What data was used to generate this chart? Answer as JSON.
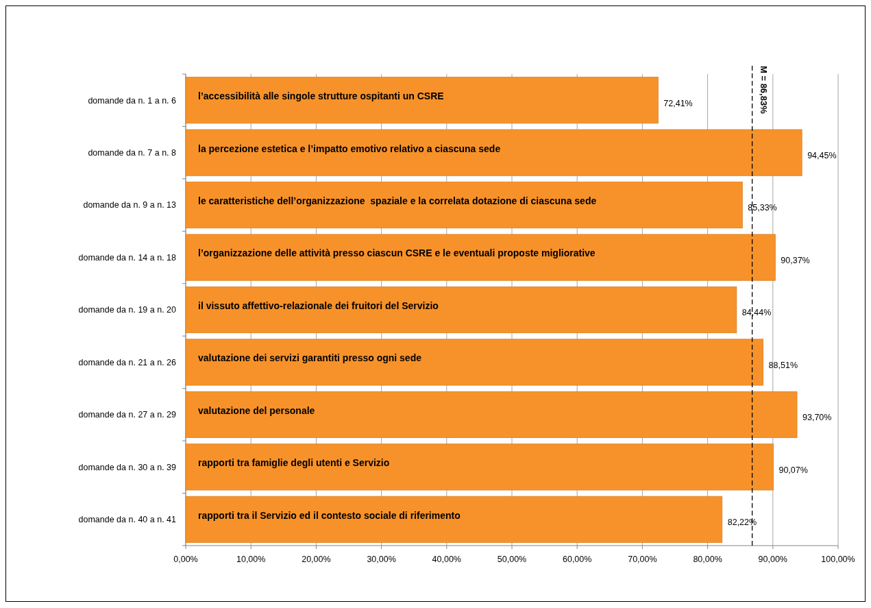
{
  "chart_data": {
    "type": "bar",
    "orientation": "horizontal",
    "categories": [
      "domande da n. 1 a n. 6",
      "domande da n. 7 a n. 8",
      "domande da n. 9 a n. 13",
      "domande da n. 14 a n. 18",
      "domande da n. 19 a n. 20",
      "domande da n. 21 a n. 26",
      "domande da n. 27 a n. 29",
      "domande da n. 30 a n. 39",
      "domande da n. 40 a n. 41"
    ],
    "values": [
      72.41,
      94.45,
      85.33,
      90.37,
      84.44,
      88.51,
      93.7,
      90.07,
      82.22
    ],
    "value_labels": [
      "72,41%",
      "94,45%",
      "85,33%",
      "90,37%",
      "84,44%",
      "88,51%",
      "93,70%",
      "90,07%",
      "82,22%"
    ],
    "color": "#f7922a",
    "xlim": [
      0,
      100
    ],
    "xticks": [
      {
        "value": 0,
        "label": "0,00%"
      },
      {
        "value": 10,
        "label": "10,00%"
      },
      {
        "value": 20,
        "label": "20,00%"
      },
      {
        "value": 30,
        "label": "30,00%"
      },
      {
        "value": 40,
        "label": "40,00%"
      },
      {
        "value": 50,
        "label": "50,00%"
      },
      {
        "value": 60,
        "label": "60,00%"
      },
      {
        "value": 70,
        "label": "70,00%"
      },
      {
        "value": 80,
        "label": "80,00%"
      },
      {
        "value": 90,
        "label": "90,00%"
      },
      {
        "value": 100,
        "label": "100,00%"
      }
    ],
    "grid": "x",
    "ref_lines": [
      {
        "axis": "x",
        "value": 86.83,
        "label": "M = 86,83%",
        "line_style": "dashed",
        "color": "#000000"
      }
    ],
    "annotations": [
      {
        "text": "l’accessibilità alle singole strutture ospitanti un CSRE",
        "y": "domande da n. 1 a n. 6"
      },
      {
        "text": "la percezione estetica e l’impatto emotivo relativo a ciascuna sede",
        "y": "domande da n. 7 a n. 8"
      },
      {
        "text": "le caratteristiche dell’organizzazione  spaziale e la correlata dotazione di ciascuna sede",
        "y": "domande da n. 9 a n. 13"
      },
      {
        "text": "l’organizzazione delle attività presso ciascun CSRE e le eventuali proposte migliorative",
        "y": "domande da n. 14 a n. 18"
      },
      {
        "text": "il vissuto affettivo-relazionale dei fruitori del Servizio",
        "y": "domande da n. 19 a n. 20"
      },
      {
        "text": "valutazione dei servizi garantiti presso ogni sede",
        "y": "domande da n. 21 a n. 26"
      },
      {
        "text": "valutazione del personale",
        "y": "domande da n. 27 a n. 29"
      },
      {
        "text": "rapporti tra famiglie degli utenti e Servizio",
        "y": "domande da n. 30 a n. 39"
      },
      {
        "text": "rapporti tra il Servizio ed il contesto sociale di riferimento",
        "y": "domande da n. 40 a n. 41"
      }
    ]
  }
}
